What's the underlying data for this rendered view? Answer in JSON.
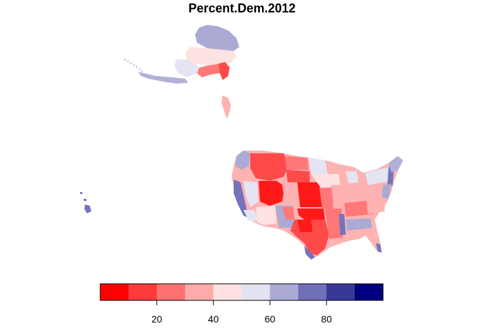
{
  "title": "Percent.Dem.2012",
  "legend": {
    "colors": [
      "#ff0000",
      "#ff3a3a",
      "#ff7070",
      "#ffaaaa",
      "#ffe1e1",
      "#e2e2f0",
      "#aaaad4",
      "#7070b8",
      "#383897",
      "#000080"
    ],
    "range": [
      0,
      100
    ],
    "ticks": [
      20,
      40,
      60,
      80
    ]
  },
  "palette": {
    "deep_red": "#ff1a1a",
    "red": "#ff4a4a",
    "mid_red": "#ff7878",
    "light_red": "#ffb2b2",
    "pale_red": "#ffe2e2",
    "pale_blue": "#e4e4f2",
    "light_blue": "#b0b0d8",
    "mid_blue": "#7474bc",
    "blue": "#4646a0"
  }
}
